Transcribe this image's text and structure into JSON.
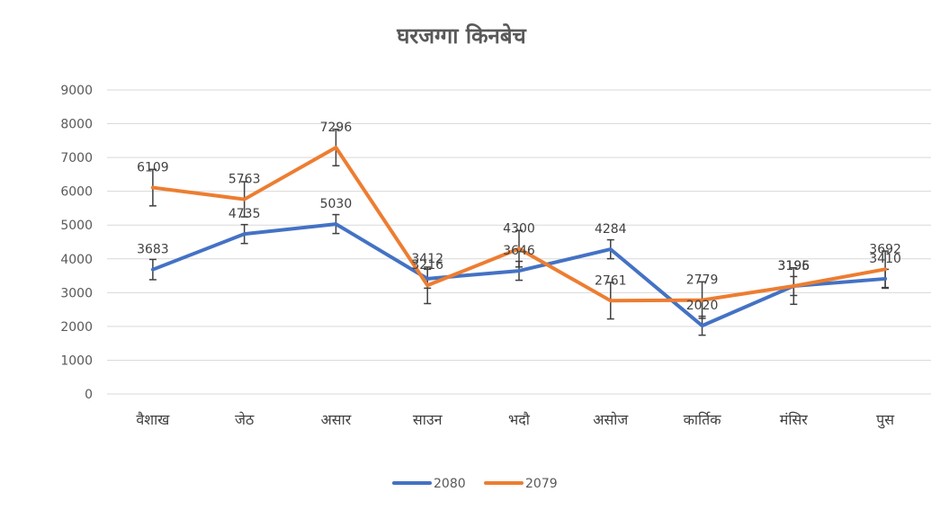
{
  "chart_data": {
    "type": "line",
    "title": "घरजग्गा किनबेच",
    "categories": [
      "वैशाख",
      "जेठ",
      "असार",
      "साउन",
      "भदौ",
      "असोज",
      "कार्तिक",
      "मंसिर",
      "पुस"
    ],
    "ylim": [
      0,
      9000
    ],
    "yticks": [
      0,
      1000,
      2000,
      3000,
      4000,
      5000,
      6000,
      7000,
      8000,
      9000
    ],
    "grid": true,
    "legend_position": "bottom",
    "error_bars": true,
    "series": [
      {
        "name": "2080",
        "color": "#4472c4",
        "values": [
          3683,
          4735,
          5030,
          3412,
          3646,
          4284,
          2020,
          3196,
          3410
        ],
        "labels": [
          "3683",
          "4735",
          "5030",
          "3412",
          "3646",
          "4284",
          "2020",
          "3196",
          "3410"
        ],
        "error": [
          300,
          280,
          280,
          280,
          280,
          280,
          280,
          280,
          280
        ]
      },
      {
        "name": "2079",
        "color": "#ed7d31",
        "values": [
          6109,
          5763,
          7296,
          3216,
          4300,
          2761,
          2779,
          3195,
          3692
        ],
        "labels": [
          "6109",
          "5763",
          "7296",
          "3216",
          "4300",
          "2761",
          "2779",
          "3195",
          "3692"
        ],
        "error": [
          540,
          520,
          540,
          540,
          540,
          540,
          540,
          540,
          540
        ]
      }
    ]
  }
}
